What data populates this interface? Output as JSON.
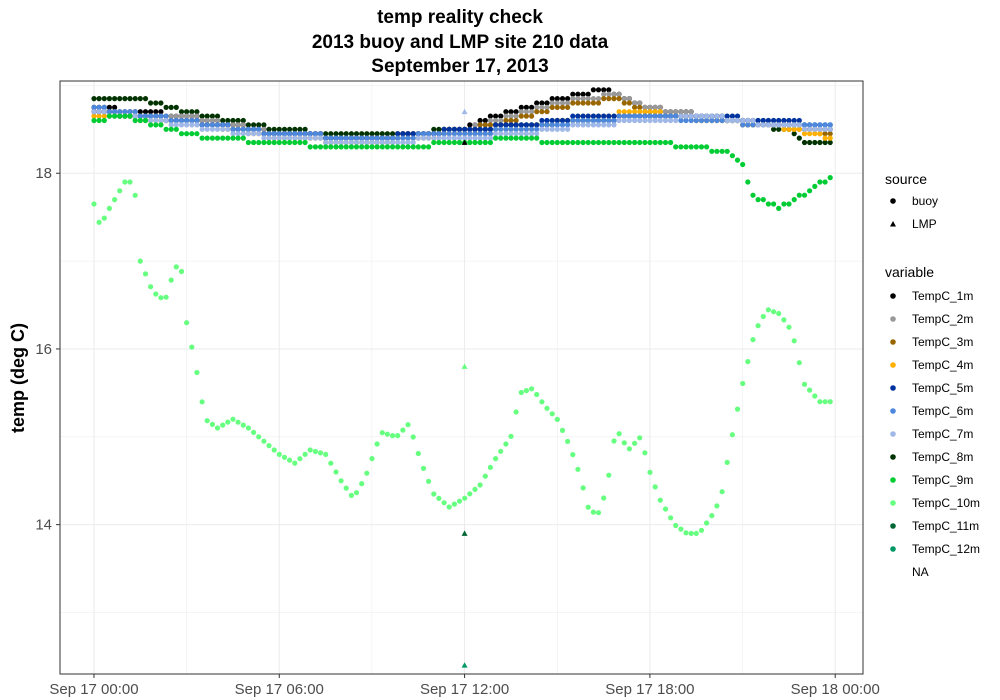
{
  "chart_data": {
    "type": "scatter",
    "title": [
      "temp reality check",
      "2013 buoy and LMP site 210 data",
      "September 17, 2013"
    ],
    "ylabel": "temp (deg C)",
    "xlabel": "",
    "x_ticks": [
      "Sep 17 00:00",
      "Sep 17 06:00",
      "Sep 17 12:00",
      "Sep 17 18:00",
      "Sep 18 00:00"
    ],
    "x_tick_hours": [
      0,
      6,
      12,
      18,
      24
    ],
    "y_ticks": [
      14,
      16,
      18
    ],
    "xlim_hours": [
      -1.1,
      24.9
    ],
    "ylim": [
      12.3,
      19.05
    ],
    "grid": true,
    "legend_position": "right",
    "legend": {
      "source": {
        "title": "source",
        "items": [
          {
            "label": "buoy",
            "shape": "circle"
          },
          {
            "label": "LMP",
            "shape": "triangle"
          }
        ]
      },
      "variable": {
        "title": "variable",
        "items": [
          {
            "label": "TempC_1m",
            "color": "#000000"
          },
          {
            "label": "TempC_2m",
            "color": "#999999"
          },
          {
            "label": "TempC_3m",
            "color": "#996600"
          },
          {
            "label": "TempC_4m",
            "color": "#ffb000"
          },
          {
            "label": "TempC_5m",
            "color": "#0033a0"
          },
          {
            "label": "TempC_6m",
            "color": "#4d88dd"
          },
          {
            "label": "TempC_7m",
            "color": "#a0b8e8"
          },
          {
            "label": "TempC_8m",
            "color": "#003300"
          },
          {
            "label": "TempC_9m",
            "color": "#00cc33"
          },
          {
            "label": "TempC_10m",
            "color": "#66ff80"
          },
          {
            "label": "TempC_11m",
            "color": "#006633"
          },
          {
            "label": "TempC_12m",
            "color": "#009966"
          },
          {
            "label": "NA",
            "color": null
          }
        ]
      }
    },
    "buoy_step_hours": 0.1667,
    "buoy_series": [
      {
        "name": "TempC_8m",
        "color": "#003300",
        "keypoints": [
          [
            0,
            18.85
          ],
          [
            1.5,
            18.85
          ],
          [
            3,
            18.7
          ],
          [
            4.5,
            18.6
          ],
          [
            6,
            18.5
          ],
          [
            8,
            18.45
          ],
          [
            10,
            18.45
          ],
          [
            12,
            18.5
          ],
          [
            14,
            18.55
          ],
          [
            16,
            18.6
          ],
          [
            18,
            18.65
          ],
          [
            20,
            18.65
          ],
          [
            21.5,
            18.55
          ],
          [
            22.5,
            18.5
          ],
          [
            23,
            18.35
          ],
          [
            24,
            18.35
          ]
        ]
      },
      {
        "name": "TempC_1m",
        "color": "#000000",
        "keypoints": [
          [
            0,
            18.75
          ],
          [
            3,
            18.65
          ],
          [
            6,
            18.45
          ],
          [
            9,
            18.4
          ],
          [
            11,
            18.45
          ],
          [
            12,
            18.5
          ],
          [
            13,
            18.65
          ],
          [
            15,
            18.85
          ],
          [
            16.5,
            18.95
          ],
          [
            18,
            18.75
          ],
          [
            20,
            18.65
          ],
          [
            22,
            18.55
          ],
          [
            24,
            18.5
          ]
        ]
      },
      {
        "name": "TempC_2m",
        "color": "#999999",
        "keypoints": [
          [
            0,
            18.7
          ],
          [
            3,
            18.65
          ],
          [
            6,
            18.45
          ],
          [
            9,
            18.4
          ],
          [
            12,
            18.5
          ],
          [
            13,
            18.6
          ],
          [
            15,
            18.8
          ],
          [
            17,
            18.9
          ],
          [
            18,
            18.75
          ],
          [
            20,
            18.65
          ],
          [
            22,
            18.6
          ],
          [
            24,
            18.5
          ]
        ]
      },
      {
        "name": "TempC_3m",
        "color": "#996600",
        "keypoints": [
          [
            0,
            18.7
          ],
          [
            3,
            18.6
          ],
          [
            6,
            18.45
          ],
          [
            9,
            18.4
          ],
          [
            12,
            18.5
          ],
          [
            13,
            18.55
          ],
          [
            15,
            18.75
          ],
          [
            17,
            18.85
          ],
          [
            18,
            18.7
          ],
          [
            20,
            18.6
          ],
          [
            22,
            18.55
          ],
          [
            24,
            18.45
          ]
        ]
      },
      {
        "name": "TempC_4m",
        "color": "#ffb000",
        "keypoints": [
          [
            0,
            18.65
          ],
          [
            3,
            18.6
          ],
          [
            6,
            18.4
          ],
          [
            9,
            18.35
          ],
          [
            12,
            18.45
          ],
          [
            14,
            18.5
          ],
          [
            16,
            18.65
          ],
          [
            18,
            18.7
          ],
          [
            20,
            18.6
          ],
          [
            22,
            18.55
          ],
          [
            24,
            18.4
          ]
        ]
      },
      {
        "name": "TempC_5m",
        "color": "#0033a0",
        "keypoints": [
          [
            0,
            18.7
          ],
          [
            3,
            18.6
          ],
          [
            6,
            18.45
          ],
          [
            9,
            18.4
          ],
          [
            12,
            18.5
          ],
          [
            14,
            18.55
          ],
          [
            16,
            18.65
          ],
          [
            18,
            18.65
          ],
          [
            20,
            18.65
          ],
          [
            22,
            18.6
          ],
          [
            24,
            18.55
          ]
        ]
      },
      {
        "name": "TempC_6m",
        "color": "#4d88dd",
        "keypoints": [
          [
            0,
            18.75
          ],
          [
            3,
            18.6
          ],
          [
            6,
            18.45
          ],
          [
            9,
            18.4
          ],
          [
            12,
            18.45
          ],
          [
            14,
            18.5
          ],
          [
            16,
            18.6
          ],
          [
            18,
            18.65
          ],
          [
            20,
            18.6
          ],
          [
            22,
            18.55
          ],
          [
            24,
            18.55
          ]
        ]
      },
      {
        "name": "TempC_7m",
        "color": "#a0b8e8",
        "keypoints": [
          [
            0,
            18.7
          ],
          [
            3,
            18.55
          ],
          [
            6,
            18.4
          ],
          [
            9,
            18.35
          ],
          [
            12,
            18.4
          ],
          [
            14,
            18.45
          ],
          [
            16,
            18.55
          ],
          [
            18,
            18.6
          ],
          [
            20,
            18.65
          ],
          [
            22,
            18.55
          ],
          [
            24,
            18.5
          ]
        ]
      },
      {
        "name": "TempC_9m",
        "color": "#00cc33",
        "keypoints": [
          [
            0,
            18.6
          ],
          [
            1,
            18.65
          ],
          [
            2,
            18.55
          ],
          [
            3,
            18.45
          ],
          [
            4,
            18.4
          ],
          [
            6,
            18.35
          ],
          [
            8,
            18.3
          ],
          [
            10,
            18.3
          ],
          [
            12,
            18.35
          ],
          [
            14,
            18.4
          ],
          [
            15,
            18.35
          ],
          [
            16,
            18.35
          ],
          [
            18,
            18.35
          ],
          [
            19.5,
            18.3
          ],
          [
            20.5,
            18.25
          ],
          [
            21,
            18.1
          ],
          [
            21.3,
            17.75
          ],
          [
            21.7,
            17.7
          ],
          [
            22.2,
            17.6
          ],
          [
            22.7,
            17.7
          ],
          [
            23.2,
            17.8
          ],
          [
            23.8,
            17.95
          ],
          [
            24,
            18.0
          ]
        ]
      },
      {
        "name": "TempC_10m",
        "color": "#66ff80",
        "keypoints": [
          [
            0,
            17.65
          ],
          [
            0.2,
            17.4
          ],
          [
            0.5,
            17.6
          ],
          [
            1.0,
            17.9
          ],
          [
            1.3,
            17.9
          ],
          [
            1.5,
            17.0
          ],
          [
            1.9,
            16.65
          ],
          [
            2.3,
            16.55
          ],
          [
            2.6,
            16.9
          ],
          [
            2.8,
            17.0
          ],
          [
            3.0,
            16.3
          ],
          [
            3.3,
            15.8
          ],
          [
            3.6,
            15.2
          ],
          [
            4.0,
            15.1
          ],
          [
            4.5,
            15.2
          ],
          [
            5.0,
            15.1
          ],
          [
            5.5,
            14.95
          ],
          [
            6.0,
            14.8
          ],
          [
            6.5,
            14.7
          ],
          [
            7.0,
            14.85
          ],
          [
            7.5,
            14.8
          ],
          [
            8.0,
            14.5
          ],
          [
            8.4,
            14.3
          ],
          [
            8.8,
            14.55
          ],
          [
            9.3,
            15.05
          ],
          [
            9.8,
            15.0
          ],
          [
            10.2,
            15.15
          ],
          [
            10.6,
            14.7
          ],
          [
            11.0,
            14.35
          ],
          [
            11.5,
            14.2
          ],
          [
            12.0,
            14.3
          ],
          [
            12.5,
            14.45
          ],
          [
            13.0,
            14.75
          ],
          [
            13.5,
            15.0
          ],
          [
            13.8,
            15.5
          ],
          [
            14.2,
            15.55
          ],
          [
            14.6,
            15.35
          ],
          [
            15.0,
            15.2
          ],
          [
            15.4,
            14.9
          ],
          [
            15.7,
            14.6
          ],
          [
            16.0,
            14.2
          ],
          [
            16.3,
            14.1
          ],
          [
            16.6,
            14.4
          ],
          [
            16.9,
            15.1
          ],
          [
            17.3,
            14.85
          ],
          [
            17.7,
            15.0
          ],
          [
            18.0,
            14.6
          ],
          [
            18.3,
            14.3
          ],
          [
            18.8,
            14.0
          ],
          [
            19.2,
            13.9
          ],
          [
            19.6,
            13.9
          ],
          [
            20.0,
            14.1
          ],
          [
            20.3,
            14.3
          ],
          [
            20.6,
            14.9
          ],
          [
            21.0,
            15.6
          ],
          [
            21.4,
            16.2
          ],
          [
            21.8,
            16.45
          ],
          [
            22.2,
            16.4
          ],
          [
            22.6,
            16.2
          ],
          [
            23.0,
            15.6
          ],
          [
            23.5,
            15.4
          ],
          [
            24.0,
            15.4
          ]
        ]
      }
    ],
    "lmp_points": [
      {
        "variable": "TempC_1m",
        "color": "#000000",
        "x": 12,
        "y": 18.35
      },
      {
        "variable": "TempC_7m",
        "color": "#a0b8e8",
        "x": 12,
        "y": 18.7
      },
      {
        "variable": "TempC_10m",
        "color": "#66ff80",
        "x": 12,
        "y": 15.8
      },
      {
        "variable": "TempC_11m",
        "color": "#006633",
        "x": 12,
        "y": 13.9
      },
      {
        "variable": "TempC_12m",
        "color": "#009966",
        "x": 12,
        "y": 12.4
      }
    ]
  }
}
